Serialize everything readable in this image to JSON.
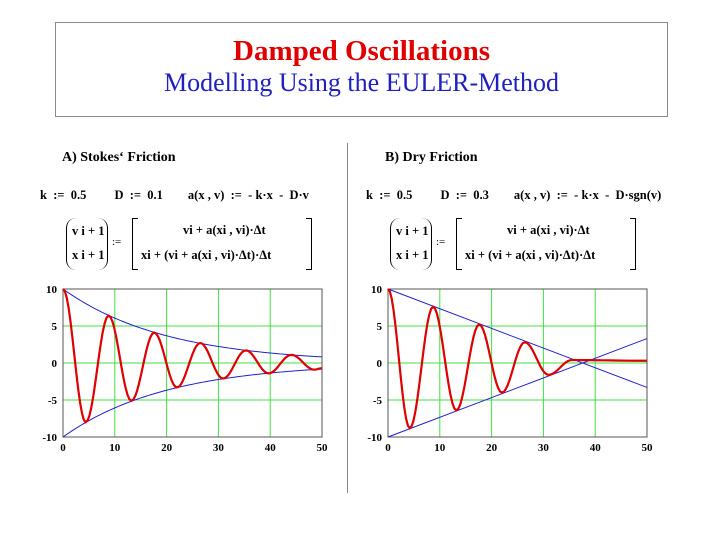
{
  "header": {
    "title": "Damped Oscillations",
    "subtitle": "Modelling Using the EULER-Method"
  },
  "panel_a": {
    "heading": "A)  Stokes‘ Friction",
    "params": "k  :=  0.5         D  :=  0.1        a(x , v)  :=  - k·x  -  D·v",
    "lhs_top": "v i + 1",
    "lhs_bottom": "x i + 1",
    "assign": ":=",
    "rhs_top": "vi  +  a(xi , vi)·Δt",
    "rhs_bottom": "xi  +  (vi  +  a(xi , vi)·Δt)·Δt"
  },
  "panel_b": {
    "heading": "B) Dry Friction",
    "params": "k  :=  0.5         D  :=  0.3        a(x , v)  :=  - k·x  -  D·sgn(v)",
    "lhs_top": "v i + 1",
    "lhs_bottom": "x i + 1",
    "assign": ":=",
    "rhs_top": "vi  +  a(xi , vi)·Δt",
    "rhs_bottom": "xi  +  (vi  +  a(xi , vi)·Δt)·Δt"
  },
  "chart_data": [
    {
      "type": "line",
      "xlim": [
        0,
        50
      ],
      "ylim": [
        -10,
        10
      ],
      "grid": true,
      "xticks": [
        "0",
        "10",
        "20",
        "30",
        "40",
        "50"
      ],
      "yticks": [
        "10",
        "5",
        "0",
        "-5",
        "-10"
      ],
      "colors": {
        "curve": "#e00000",
        "envelope": "#2020d0",
        "grid": "#40e040"
      },
      "extrema": [
        [
          0,
          10
        ],
        [
          4.4,
          -8.0
        ],
        [
          8.8,
          6.4
        ],
        [
          13.2,
          -5.1
        ],
        [
          17.6,
          4.1
        ],
        [
          22,
          -3.3
        ],
        [
          26.5,
          2.7
        ],
        [
          30.9,
          -2.1
        ],
        [
          35.3,
          1.7
        ],
        [
          39.7,
          -1.4
        ],
        [
          44.1,
          1.1
        ],
        [
          48.5,
          -0.9
        ],
        [
          50,
          -0.7
        ]
      ],
      "envelope": {
        "kind": "exponential",
        "amplitude": 10,
        "rate": 0.05
      }
    },
    {
      "type": "line",
      "xlim": [
        0,
        50
      ],
      "ylim": [
        -10,
        10
      ],
      "grid": true,
      "xticks": [
        "0",
        "10",
        "20",
        "30",
        "40",
        "50"
      ],
      "yticks": [
        "10",
        "5",
        "0",
        "-5",
        "-10"
      ],
      "colors": {
        "curve": "#e00000",
        "envelope": "#2020d0",
        "grid": "#40e040"
      },
      "extrema": [
        [
          0,
          10
        ],
        [
          4.2,
          -8.8
        ],
        [
          8.7,
          7.6
        ],
        [
          13.2,
          -6.4
        ],
        [
          17.6,
          5.2
        ],
        [
          22,
          -4.0
        ],
        [
          26.4,
          2.8
        ],
        [
          31,
          -1.6
        ],
        [
          35.5,
          0.4
        ],
        [
          50,
          0.3
        ]
      ],
      "envelope": {
        "kind": "linear",
        "upper": [
          [
            0,
            10
          ],
          [
            50,
            -3.3
          ]
        ],
        "lower": [
          [
            0,
            -10
          ],
          [
            50,
            3.3
          ]
        ]
      }
    }
  ]
}
